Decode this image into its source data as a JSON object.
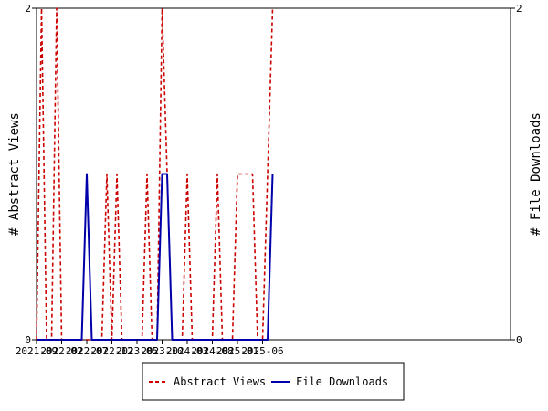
{
  "chart_data": {
    "type": "line",
    "x_tick_labels": [
      "2021-09",
      "2022-02",
      "2022-07",
      "2022-12",
      "2023-05",
      "2023-10",
      "2024-03",
      "2024-08",
      "2025-01",
      "2025-06"
    ],
    "y_left_label": "# Abstract Views",
    "y_right_label": "# File Downloads",
    "y_left_ticks": [
      "0",
      "2"
    ],
    "y_right_ticks": [
      "0",
      "2"
    ],
    "ylim": [
      0,
      2
    ],
    "legend_position": "bottom",
    "series": [
      {
        "name": "Abstract Views",
        "color": "#cc0000",
        "style": "dashed",
        "axis": "left",
        "points": [
          [
            "2021-09",
            0
          ],
          [
            "2021-10",
            2
          ],
          [
            "2021-11",
            0
          ],
          [
            "2021-12",
            0
          ],
          [
            "2022-01",
            2
          ],
          [
            "2022-02",
            0
          ],
          [
            "2022-03",
            0
          ],
          [
            "2022-04",
            0
          ],
          [
            "2022-05",
            0
          ],
          [
            "2022-06",
            0
          ],
          [
            "2022-07",
            0
          ],
          [
            "2022-08",
            0
          ],
          [
            "2022-09",
            0
          ],
          [
            "2022-10",
            0
          ],
          [
            "2022-11",
            1
          ],
          [
            "2022-12",
            0
          ],
          [
            "2023-01",
            1
          ],
          [
            "2023-02",
            0
          ],
          [
            "2023-03",
            0
          ],
          [
            "2023-04",
            0
          ],
          [
            "2023-05",
            0
          ],
          [
            "2023-06",
            0
          ],
          [
            "2023-07",
            1
          ],
          [
            "2023-08",
            0
          ],
          [
            "2023-09",
            0
          ],
          [
            "2023-10",
            2
          ],
          [
            "2023-11",
            1
          ],
          [
            "2023-12",
            0
          ],
          [
            "2024-01",
            0
          ],
          [
            "2024-02",
            0
          ],
          [
            "2024-03",
            1
          ],
          [
            "2024-04",
            0
          ],
          [
            "2024-05",
            0
          ],
          [
            "2024-06",
            0
          ],
          [
            "2024-07",
            0
          ],
          [
            "2024-08",
            0
          ],
          [
            "2024-09",
            1
          ],
          [
            "2024-10",
            0
          ],
          [
            "2024-11",
            0
          ],
          [
            "2024-12",
            0
          ],
          [
            "2025-01",
            1
          ],
          [
            "2025-02",
            1
          ],
          [
            "2025-03",
            1
          ],
          [
            "2025-04",
            1
          ],
          [
            "2025-05",
            0
          ],
          [
            "2025-06",
            0
          ],
          [
            "2025-07",
            1
          ],
          [
            "2025-08",
            2
          ]
        ]
      },
      {
        "name": "File Downloads",
        "color": "#0000aa",
        "style": "solid",
        "axis": "right",
        "points": [
          [
            "2021-09",
            0
          ],
          [
            "2021-10",
            0
          ],
          [
            "2021-11",
            0
          ],
          [
            "2021-12",
            0
          ],
          [
            "2022-01",
            0
          ],
          [
            "2022-02",
            0
          ],
          [
            "2022-03",
            0
          ],
          [
            "2022-04",
            0
          ],
          [
            "2022-05",
            0
          ],
          [
            "2022-06",
            0
          ],
          [
            "2022-07",
            1
          ],
          [
            "2022-08",
            0
          ],
          [
            "2022-09",
            0
          ],
          [
            "2022-10",
            0
          ],
          [
            "2022-11",
            0
          ],
          [
            "2022-12",
            0
          ],
          [
            "2023-01",
            0
          ],
          [
            "2023-02",
            0
          ],
          [
            "2023-03",
            0
          ],
          [
            "2023-04",
            0
          ],
          [
            "2023-05",
            0
          ],
          [
            "2023-06",
            0
          ],
          [
            "2023-07",
            0
          ],
          [
            "2023-08",
            0
          ],
          [
            "2023-09",
            0
          ],
          [
            "2023-10",
            1
          ],
          [
            "2023-11",
            1
          ],
          [
            "2023-12",
            0
          ],
          [
            "2024-01",
            0
          ],
          [
            "2024-02",
            0
          ],
          [
            "2024-03",
            0
          ],
          [
            "2024-04",
            0
          ],
          [
            "2024-05",
            0
          ],
          [
            "2024-06",
            0
          ],
          [
            "2024-07",
            0
          ],
          [
            "2024-08",
            0
          ],
          [
            "2024-09",
            0
          ],
          [
            "2024-10",
            0
          ],
          [
            "2024-11",
            0
          ],
          [
            "2024-12",
            0
          ],
          [
            "2025-01",
            0
          ],
          [
            "2025-02",
            0
          ],
          [
            "2025-03",
            0
          ],
          [
            "2025-04",
            0
          ],
          [
            "2025-05",
            0
          ],
          [
            "2025-06",
            0
          ],
          [
            "2025-07",
            0
          ],
          [
            "2025-08",
            1
          ]
        ]
      }
    ]
  }
}
